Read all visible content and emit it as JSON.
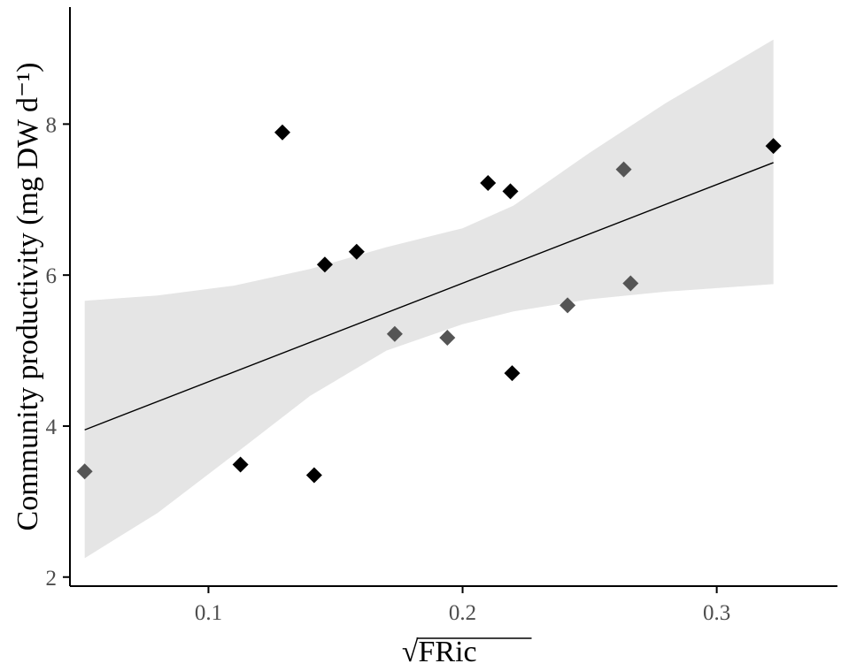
{
  "chart_data": {
    "type": "scatter",
    "xlabel": "FRic",
    "xlabel_prefix": "√",
    "ylabel": "Community productivity (mg DW d⁻¹)",
    "xlim": [
      0.0455,
      0.3475
    ],
    "ylim": [
      1.88,
      9.55
    ],
    "x_ticks": [
      0.1,
      0.2,
      0.3
    ],
    "x_tick_labels": [
      "0.1",
      "0.2",
      "0.3"
    ],
    "y_ticks": [
      2,
      4,
      6,
      8
    ],
    "y_tick_labels": [
      "2",
      "4",
      "6",
      "8"
    ],
    "grid": false,
    "legend": "none",
    "series": [
      {
        "marker": "diamond",
        "points": [
          {
            "x": 0.0513,
            "y": 3.4,
            "color": "#555555"
          },
          {
            "x": 0.1126,
            "y": 3.49,
            "color": "#000000"
          },
          {
            "x": 0.1291,
            "y": 7.89,
            "color": "#000000"
          },
          {
            "x": 0.1416,
            "y": 3.35,
            "color": "#000000"
          },
          {
            "x": 0.1458,
            "y": 6.14,
            "color": "#000000"
          },
          {
            "x": 0.1583,
            "y": 6.31,
            "color": "#000000"
          },
          {
            "x": 0.1733,
            "y": 5.22,
            "color": "#555555"
          },
          {
            "x": 0.194,
            "y": 5.17,
            "color": "#555555"
          },
          {
            "x": 0.21,
            "y": 7.22,
            "color": "#000000"
          },
          {
            "x": 0.2188,
            "y": 7.11,
            "color": "#000000"
          },
          {
            "x": 0.2195,
            "y": 4.7,
            "color": "#000000"
          },
          {
            "x": 0.2413,
            "y": 5.6,
            "color": "#555555"
          },
          {
            "x": 0.2634,
            "y": 7.4,
            "color": "#555555"
          },
          {
            "x": 0.2661,
            "y": 5.89,
            "color": "#555555"
          },
          {
            "x": 0.3223,
            "y": 7.71,
            "color": "#000000"
          }
        ]
      }
    ],
    "fit_line": {
      "x": [
        0.0513,
        0.3223
      ],
      "y": [
        3.95,
        7.49
      ],
      "color": "#000000"
    },
    "confidence_band": {
      "color": "#e5e5e5",
      "x": [
        0.0513,
        0.08,
        0.11,
        0.14,
        0.17,
        0.2,
        0.22,
        0.25,
        0.28,
        0.3223
      ],
      "lower": [
        2.25,
        2.85,
        3.62,
        4.4,
        5.0,
        5.35,
        5.52,
        5.68,
        5.78,
        5.88
      ],
      "upper": [
        5.66,
        5.73,
        5.86,
        6.08,
        6.37,
        6.62,
        6.92,
        7.62,
        8.28,
        9.12
      ]
    },
    "colors": {
      "axis": "#000000",
      "tick_label": "#4d4d4d"
    }
  }
}
